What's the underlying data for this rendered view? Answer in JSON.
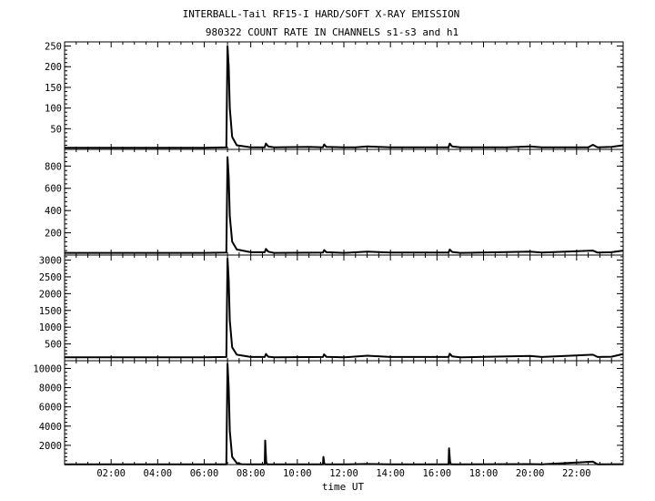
{
  "title": "INTERBALL-Tail RF15-I HARD/SOFT X-RAY EMISSION",
  "subtitle": "980322  COUNT RATE IN CHANNELS s1-s3 and h1",
  "chart_data": {
    "type": "line",
    "title": "INTERBALL-Tail RF15-I HARD/SOFT X-RAY EMISSION",
    "subtitle": "980322  COUNT RATE IN CHANNELS s1-s3 and h1",
    "xlabel": "time UT",
    "xlim": [
      0,
      24
    ],
    "x_ticks": [
      2,
      4,
      6,
      8,
      10,
      12,
      14,
      16,
      18,
      20,
      22
    ],
    "x_tick_labels": [
      "02:00",
      "04:00",
      "06:00",
      "08:00",
      "10:00",
      "12:00",
      "14:00",
      "16:00",
      "18:00",
      "20:00",
      "22:00"
    ],
    "grid": false,
    "panels": [
      {
        "ylim": [
          0,
          260
        ],
        "y_ticks": [
          50,
          100,
          150,
          200,
          250
        ],
        "y_tick_labels": [
          "50",
          "100",
          "150",
          "200",
          "250"
        ],
        "points": [
          [
            0,
            4
          ],
          [
            1,
            4
          ],
          [
            2,
            4
          ],
          [
            3,
            4
          ],
          [
            4,
            4
          ],
          [
            5,
            4
          ],
          [
            6,
            4
          ],
          [
            6.95,
            5
          ],
          [
            7.0,
            250
          ],
          [
            7.05,
            200
          ],
          [
            7.1,
            100
          ],
          [
            7.2,
            30
          ],
          [
            7.4,
            10
          ],
          [
            8,
            5
          ],
          [
            8.6,
            5
          ],
          [
            8.65,
            14
          ],
          [
            8.75,
            7
          ],
          [
            9,
            5
          ],
          [
            10.5,
            6
          ],
          [
            11.1,
            5
          ],
          [
            11.15,
            12
          ],
          [
            11.25,
            6
          ],
          [
            12,
            5
          ],
          [
            12.5,
            5
          ],
          [
            13,
            7
          ],
          [
            13.5,
            6
          ],
          [
            14,
            5
          ],
          [
            16.5,
            5
          ],
          [
            16.55,
            14
          ],
          [
            16.65,
            7
          ],
          [
            17,
            5
          ],
          [
            19,
            5
          ],
          [
            20,
            7
          ],
          [
            20.5,
            5
          ],
          [
            22.5,
            5
          ],
          [
            22.7,
            11
          ],
          [
            22.9,
            5
          ],
          [
            23.5,
            6
          ],
          [
            24,
            10
          ]
        ]
      },
      {
        "ylim": [
          0,
          950
        ],
        "y_ticks": [
          200,
          400,
          600,
          800
        ],
        "y_tick_labels": [
          "200",
          "400",
          "600",
          "800"
        ],
        "points": [
          [
            0,
            20
          ],
          [
            2,
            20
          ],
          [
            4,
            20
          ],
          [
            6,
            20
          ],
          [
            6.95,
            22
          ],
          [
            7.0,
            880
          ],
          [
            7.05,
            700
          ],
          [
            7.1,
            350
          ],
          [
            7.2,
            120
          ],
          [
            7.4,
            50
          ],
          [
            8,
            25
          ],
          [
            8.6,
            25
          ],
          [
            8.65,
            55
          ],
          [
            8.75,
            30
          ],
          [
            9,
            20
          ],
          [
            11.1,
            22
          ],
          [
            11.15,
            45
          ],
          [
            11.25,
            25
          ],
          [
            12,
            20
          ],
          [
            13,
            30
          ],
          [
            14,
            22
          ],
          [
            16.5,
            22
          ],
          [
            16.55,
            50
          ],
          [
            16.65,
            28
          ],
          [
            17,
            20
          ],
          [
            20,
            30
          ],
          [
            20.5,
            22
          ],
          [
            22.7,
            40
          ],
          [
            22.9,
            22
          ],
          [
            23.5,
            25
          ],
          [
            24,
            40
          ]
        ]
      },
      {
        "ylim": [
          0,
          3150
        ],
        "y_ticks": [
          500,
          1000,
          1500,
          2000,
          2500,
          3000
        ],
        "y_tick_labels": [
          "500",
          "1000",
          "1500",
          "2000",
          "2500",
          "3000"
        ],
        "points": [
          [
            0,
            100
          ],
          [
            2,
            100
          ],
          [
            4,
            100
          ],
          [
            6,
            100
          ],
          [
            6.95,
            110
          ],
          [
            7.0,
            3050
          ],
          [
            7.05,
            2400
          ],
          [
            7.1,
            1200
          ],
          [
            7.2,
            400
          ],
          [
            7.4,
            180
          ],
          [
            8,
            110
          ],
          [
            8.6,
            110
          ],
          [
            8.65,
            200
          ],
          [
            8.75,
            120
          ],
          [
            9,
            100
          ],
          [
            11.1,
            110
          ],
          [
            11.15,
            190
          ],
          [
            11.25,
            115
          ],
          [
            12,
            100
          ],
          [
            13,
            150
          ],
          [
            14,
            110
          ],
          [
            16.5,
            110
          ],
          [
            16.55,
            210
          ],
          [
            16.65,
            130
          ],
          [
            17,
            100
          ],
          [
            20,
            140
          ],
          [
            20.5,
            110
          ],
          [
            22.7,
            180
          ],
          [
            22.9,
            110
          ],
          [
            23.5,
            120
          ],
          [
            24,
            200
          ]
        ]
      },
      {
        "ylim": [
          0,
          10800
        ],
        "y_ticks": [
          2000,
          4000,
          6000,
          8000,
          10000
        ],
        "y_tick_labels": [
          "2000",
          "4000",
          "6000",
          "8000",
          "10000"
        ],
        "points": [
          [
            0,
            20
          ],
          [
            2,
            20
          ],
          [
            4,
            20
          ],
          [
            6,
            20
          ],
          [
            6.95,
            30
          ],
          [
            7.0,
            10500
          ],
          [
            7.05,
            8000
          ],
          [
            7.1,
            3500
          ],
          [
            7.2,
            800
          ],
          [
            7.4,
            150
          ],
          [
            7.6,
            40
          ],
          [
            8,
            20
          ],
          [
            8.6,
            20
          ],
          [
            8.62,
            2500
          ],
          [
            8.66,
            300
          ],
          [
            8.7,
            20
          ],
          [
            11.1,
            20
          ],
          [
            11.12,
            800
          ],
          [
            11.16,
            100
          ],
          [
            11.2,
            20
          ],
          [
            12,
            20
          ],
          [
            13,
            60
          ],
          [
            14,
            20
          ],
          [
            16.5,
            20
          ],
          [
            16.52,
            1700
          ],
          [
            16.56,
            300
          ],
          [
            16.6,
            20
          ],
          [
            20,
            50
          ],
          [
            20.5,
            20
          ],
          [
            22.7,
            300
          ],
          [
            22.9,
            20
          ],
          [
            24,
            40
          ]
        ]
      }
    ]
  }
}
